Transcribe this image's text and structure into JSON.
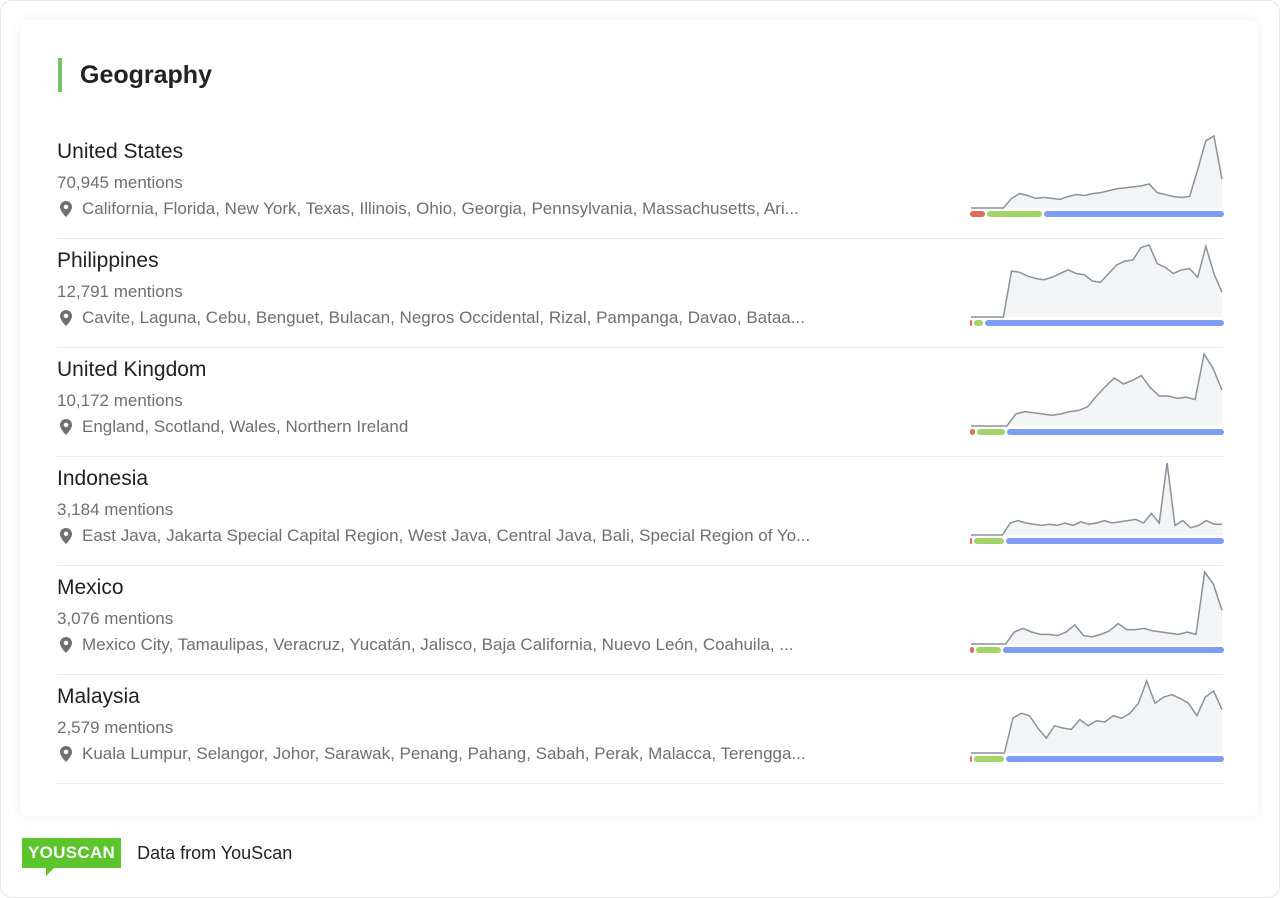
{
  "title": "Geography",
  "colors": {
    "accent": "#74c365",
    "negative": "#e06c5c",
    "neutral": "#a4d465",
    "positive": "#7f9cf5",
    "spark_line": "#8a929c",
    "spark_fill": "#f3f4f6"
  },
  "countries": [
    {
      "name": "United States",
      "mentions": "70,945 mentions",
      "regions": "California, Florida, New York, Texas, Illinois, Ohio, Georgia, Pennsylvania, Massachusetts, Ari...",
      "sentiment": {
        "negative": 6,
        "neutral": 22,
        "positive": 72
      },
      "trend": [
        0,
        0,
        0,
        0,
        0,
        10,
        15,
        13,
        10,
        11,
        10,
        9,
        12,
        14,
        13,
        15,
        16,
        18,
        20,
        21,
        22,
        23,
        25,
        16,
        14,
        12,
        11,
        12,
        40,
        70,
        75,
        30
      ]
    },
    {
      "name": "Philippines",
      "mentions": "12,791 mentions",
      "regions": "Cavite, Laguna, Cebu, Benguet, Bulacan, Negros Occidental, Rizal, Pampanga, Davao, Bataa...",
      "sentiment": {
        "negative": 0.5,
        "neutral": 3.5,
        "positive": 96
      },
      "trend": [
        0,
        0,
        0,
        0,
        0,
        37,
        36,
        33,
        31,
        30,
        32,
        35,
        38,
        35,
        34,
        29,
        28,
        35,
        42,
        45,
        46,
        56,
        58,
        43,
        40,
        35,
        38,
        39,
        32,
        57,
        35,
        20
      ]
    },
    {
      "name": "United Kingdom",
      "mentions": "10,172 mentions",
      "regions": "England, Scotland, Wales, Northern Ireland",
      "sentiment": {
        "negative": 2,
        "neutral": 11,
        "positive": 87
      },
      "trend": [
        0,
        0,
        0,
        0,
        0,
        10,
        12,
        11,
        10,
        9,
        10,
        12,
        13,
        16,
        25,
        33,
        40,
        35,
        38,
        42,
        32,
        25,
        25,
        23,
        24,
        22,
        60,
        48,
        30
      ]
    },
    {
      "name": "Indonesia",
      "mentions": "3,184 mentions",
      "regions": "East Java, Jakarta Special Capital Region, West Java, Central Java, Bali, Special Region of Yo...",
      "sentiment": {
        "negative": 0.5,
        "neutral": 12,
        "positive": 87.5
      },
      "trend": [
        0,
        0,
        0,
        0,
        0,
        10,
        12,
        10,
        9,
        8,
        9,
        8,
        10,
        8,
        11,
        9,
        10,
        12,
        10,
        11,
        12,
        13,
        10,
        18,
        10,
        60,
        8,
        12,
        6,
        8,
        12,
        9,
        9
      ]
    },
    {
      "name": "Mexico",
      "mentions": "3,076 mentions",
      "regions": "Mexico City, Tamaulipas, Veracruz, Yucatán, Jalisco, Baja California, Nuevo León, Coahuila, ...",
      "sentiment": {
        "negative": 1.5,
        "neutral": 10,
        "positive": 88.5
      },
      "trend": [
        0,
        0,
        0,
        0,
        0,
        10,
        13,
        10,
        8,
        8,
        7,
        10,
        16,
        7,
        6,
        8,
        11,
        17,
        12,
        12,
        13,
        11,
        10,
        9,
        8,
        10,
        8,
        60,
        50,
        28
      ]
    },
    {
      "name": "Malaysia",
      "mentions": "2,579 mentions",
      "regions": "Kuala Lumpur, Selangor, Johor, Sarawak, Penang, Pahang, Sabah, Perak, Malacca, Terengga...",
      "sentiment": {
        "negative": 0.5,
        "neutral": 12,
        "positive": 87.5
      },
      "trend": [
        0,
        0,
        0,
        0,
        0,
        28,
        32,
        30,
        20,
        12,
        22,
        20,
        19,
        27,
        22,
        26,
        25,
        30,
        28,
        32,
        40,
        58,
        40,
        45,
        47,
        44,
        40,
        30,
        45,
        50,
        35
      ]
    }
  ],
  "footer": {
    "logo": "YOUSCAN",
    "source": "Data from YouScan"
  }
}
